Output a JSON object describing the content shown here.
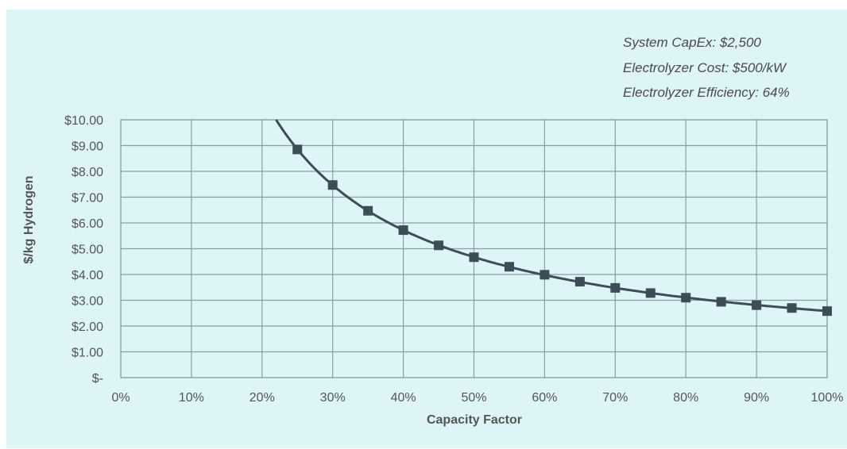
{
  "chart_data": {
    "type": "line",
    "annotations": [
      "System CapEx: $2,500",
      "Electrolyzer Cost: $500/kW",
      "Electrolyzer Efficiency: 64%"
    ],
    "xlabel": "Capacity Factor",
    "ylabel": "$/kg Hydrogen",
    "xlim": [
      0,
      100
    ],
    "ylim": [
      0,
      10
    ],
    "x_tick_labels": [
      "0%",
      "10%",
      "20%",
      "30%",
      "40%",
      "50%",
      "60%",
      "70%",
      "80%",
      "90%",
      "100%"
    ],
    "y_tick_labels": [
      "$-",
      "$1.00",
      "$2.00",
      "$3.00",
      "$4.00",
      "$5.00",
      "$6.00",
      "$7.00",
      "$8.00",
      "$9.00",
      "$10.00"
    ],
    "grid": true,
    "series": [
      {
        "x": [
          25,
          30,
          35,
          40,
          45,
          50,
          55,
          60,
          65,
          70,
          75,
          80,
          85,
          90,
          95,
          100
        ],
        "y": [
          8.85,
          7.47,
          6.47,
          5.72,
          5.13,
          4.67,
          4.3,
          3.99,
          3.72,
          3.48,
          3.28,
          3.1,
          2.94,
          2.81,
          2.7,
          2.58
        ]
      }
    ],
    "colors": {
      "line": "#3d4d57",
      "marker": "#3d4d57",
      "grid": "#8a9ea3",
      "background": "#ddf5f6"
    }
  }
}
